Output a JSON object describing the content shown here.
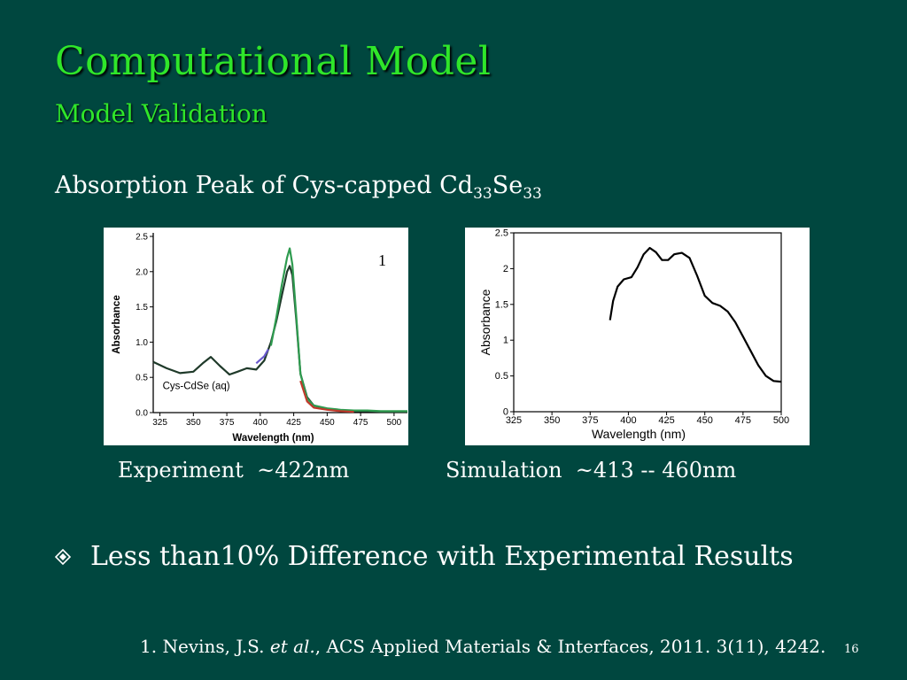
{
  "slide": {
    "title": "Computational Model",
    "subtitle": "Model Validation",
    "heading": {
      "prefix": "Absorption Peak of Cys-capped Cd",
      "sub1": "33",
      "mid": "Se",
      "sub2": "33"
    },
    "captions": {
      "experiment": "Experiment  ~422nm",
      "simulation": "Simulation  ~413 -- 460nm"
    },
    "bullet": "Less than10% Difference with Experimental Results",
    "reference": {
      "part1": "1. Nevins, J.S. ",
      "italic": "et al.",
      "part2": ", ACS Applied Materials & Interfaces, 2011. 3(11), 4242."
    },
    "page_number": "16",
    "colors": {
      "background": "#00473f",
      "title": "#2fe62a",
      "text": "#ffffff"
    }
  },
  "chart_data": [
    {
      "type": "line",
      "name": "experiment",
      "xlabel": "Wavelength (nm)",
      "ylabel": "Absorbance",
      "annotation": "Cys-CdSe (aq)",
      "corner_label": "1",
      "xlim": [
        320,
        510
      ],
      "ylim": [
        0,
        2.5
      ],
      "xticks": [
        325,
        350,
        375,
        400,
        425,
        450,
        475,
        500
      ],
      "yticks": [
        "0.0",
        "0.5",
        "1.0",
        "1.5",
        "2.0",
        "2.5"
      ],
      "ytick_values": [
        0,
        0.5,
        1.0,
        1.5,
        2.0,
        2.5
      ],
      "series": [
        {
          "color": "#1f3a2a",
          "x": [
            320,
            330,
            340,
            350,
            357,
            363,
            370,
            377,
            383,
            390,
            397,
            403,
            408,
            412,
            416,
            420,
            422,
            424,
            427,
            430,
            435,
            440,
            450,
            460,
            470,
            480,
            490,
            500,
            510
          ],
          "y": [
            0.72,
            0.63,
            0.56,
            0.58,
            0.7,
            0.79,
            0.66,
            0.54,
            0.58,
            0.63,
            0.61,
            0.74,
            1.0,
            1.3,
            1.65,
            2.0,
            2.08,
            1.95,
            1.3,
            0.55,
            0.22,
            0.1,
            0.05,
            0.03,
            0.02,
            0.02,
            0.01,
            0.01,
            0.01
          ]
        },
        {
          "color": "#2e9b4f",
          "x": [
            408,
            412,
            416,
            420,
            422,
            424,
            427,
            430,
            435,
            440,
            450,
            460,
            470,
            480,
            490,
            500,
            510
          ],
          "y": [
            0.95,
            1.35,
            1.8,
            2.2,
            2.33,
            2.1,
            1.35,
            0.55,
            0.2,
            0.1,
            0.06,
            0.04,
            0.03,
            0.03,
            0.02,
            0.02,
            0.02
          ]
        },
        {
          "color": "#c0392b",
          "x": [
            430,
            435,
            440,
            450,
            460,
            470
          ],
          "y": [
            0.45,
            0.16,
            0.07,
            0.04,
            0.02,
            0.01
          ]
        },
        {
          "color": "#6a5acd",
          "x": [
            397,
            400,
            403,
            406
          ],
          "y": [
            0.7,
            0.75,
            0.8,
            0.9
          ]
        }
      ]
    },
    {
      "type": "line",
      "name": "simulation",
      "xlabel": "Wavelength (nm)",
      "ylabel": "Absorbance",
      "xlim": [
        325,
        500
      ],
      "ylim": [
        0,
        2.5
      ],
      "xticks": [
        325,
        350,
        375,
        400,
        425,
        450,
        475,
        500
      ],
      "yticks": [
        "0",
        "0.5",
        "1",
        "1.5",
        "2",
        "2.5"
      ],
      "ytick_values": [
        0,
        0.5,
        1,
        1.5,
        2,
        2.5
      ],
      "series": [
        {
          "color": "#000000",
          "x": [
            388,
            390,
            393,
            397,
            402,
            406,
            410,
            414,
            418,
            422,
            426,
            430,
            435,
            440,
            445,
            450,
            455,
            460,
            465,
            470,
            475,
            480,
            485,
            490,
            495,
            500
          ],
          "y": [
            1.28,
            1.55,
            1.75,
            1.85,
            1.88,
            2.02,
            2.2,
            2.29,
            2.23,
            2.12,
            2.12,
            2.2,
            2.22,
            2.15,
            1.9,
            1.62,
            1.52,
            1.48,
            1.4,
            1.25,
            1.05,
            0.85,
            0.65,
            0.5,
            0.43,
            0.42
          ]
        }
      ]
    }
  ]
}
